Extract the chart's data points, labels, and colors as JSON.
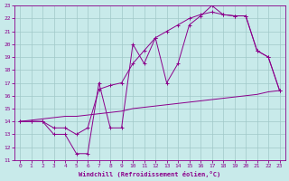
{
  "xlabel": "Windchill (Refroidissement éolien,°C)",
  "bg_color": "#c8eaea",
  "grid_color": "#a0c8c8",
  "line_color": "#8b008b",
  "xlim": [
    -0.5,
    23.5
  ],
  "ylim": [
    11,
    23
  ],
  "xticks": [
    0,
    1,
    2,
    3,
    4,
    5,
    6,
    7,
    8,
    9,
    10,
    11,
    12,
    13,
    14,
    15,
    16,
    17,
    18,
    19,
    20,
    21,
    22,
    23
  ],
  "yticks": [
    11,
    12,
    13,
    14,
    15,
    16,
    17,
    18,
    19,
    20,
    21,
    22,
    23
  ],
  "zigzag_x": [
    0,
    1,
    2,
    3,
    4,
    5,
    6,
    7,
    8,
    9,
    10,
    11,
    12,
    13,
    14,
    15,
    16,
    17,
    18,
    19,
    20,
    21,
    22,
    23
  ],
  "zigzag_y": [
    14,
    14,
    14,
    13,
    13,
    11.5,
    11.5,
    17.0,
    13.5,
    13.5,
    20.0,
    18.5,
    20.5,
    17.0,
    18.5,
    21.5,
    22.2,
    23.0,
    22.3,
    22.2,
    22.2,
    19.5,
    19.0,
    16.4
  ],
  "smooth_x": [
    0,
    1,
    2,
    3,
    4,
    5,
    6,
    7,
    8,
    9,
    10,
    11,
    12,
    13,
    14,
    15,
    16,
    17,
    18,
    19,
    20,
    21,
    22,
    23
  ],
  "smooth_y": [
    14,
    14,
    14,
    13.5,
    13.5,
    13.0,
    13.5,
    16.5,
    16.8,
    17.0,
    18.5,
    19.5,
    20.5,
    21.0,
    21.5,
    22.0,
    22.3,
    22.5,
    22.3,
    22.2,
    22.2,
    19.5,
    19.0,
    16.4
  ],
  "diag_x": [
    0,
    1,
    2,
    3,
    4,
    5,
    6,
    7,
    8,
    9,
    10,
    11,
    12,
    13,
    14,
    15,
    16,
    17,
    18,
    19,
    20,
    21,
    22,
    23
  ],
  "diag_y": [
    14.0,
    14.1,
    14.2,
    14.3,
    14.4,
    14.4,
    14.5,
    14.6,
    14.7,
    14.8,
    15.0,
    15.1,
    15.2,
    15.3,
    15.4,
    15.5,
    15.6,
    15.7,
    15.8,
    15.9,
    16.0,
    16.1,
    16.3,
    16.4
  ]
}
